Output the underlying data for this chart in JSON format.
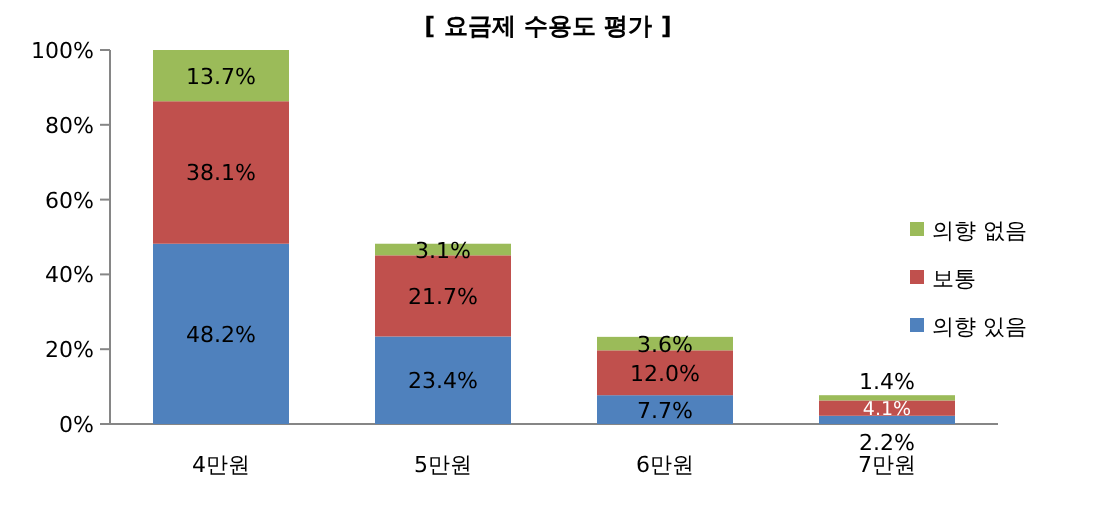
{
  "chart_data": {
    "type": "bar",
    "title": "[ 요금제 수용도 평가 ]",
    "stacked": true,
    "legend": "right",
    "categories": [
      "4만원",
      "5만원",
      "6만원",
      "7만원"
    ],
    "series": [
      {
        "name": "의향 있음",
        "color": "#4f81bd",
        "values": [
          48.2,
          23.4,
          7.7,
          2.2
        ],
        "value_labels": [
          "48.2%",
          "23.4%",
          "7.7%",
          "2.2%"
        ]
      },
      {
        "name": "보통",
        "color": "#c0504d",
        "values": [
          38.1,
          21.7,
          12.0,
          4.1
        ],
        "value_labels": [
          "38.1%",
          "21.7%",
          "12.0%",
          "4.1%"
        ]
      },
      {
        "name": "의향 없음",
        "color": "#9bbb59",
        "values": [
          13.7,
          3.1,
          3.6,
          1.4
        ],
        "value_labels": [
          "13.7%",
          "3.1%",
          "3.6%",
          "1.4%"
        ]
      }
    ],
    "ylim": [
      0,
      100
    ],
    "yticks": [
      {
        "value": 0,
        "label": "0%"
      },
      {
        "value": 20,
        "label": "20%"
      },
      {
        "value": 40,
        "label": "40%"
      },
      {
        "value": 60,
        "label": "60%"
      },
      {
        "value": 80,
        "label": "80%"
      },
      {
        "value": 100,
        "label": "100%"
      }
    ]
  }
}
